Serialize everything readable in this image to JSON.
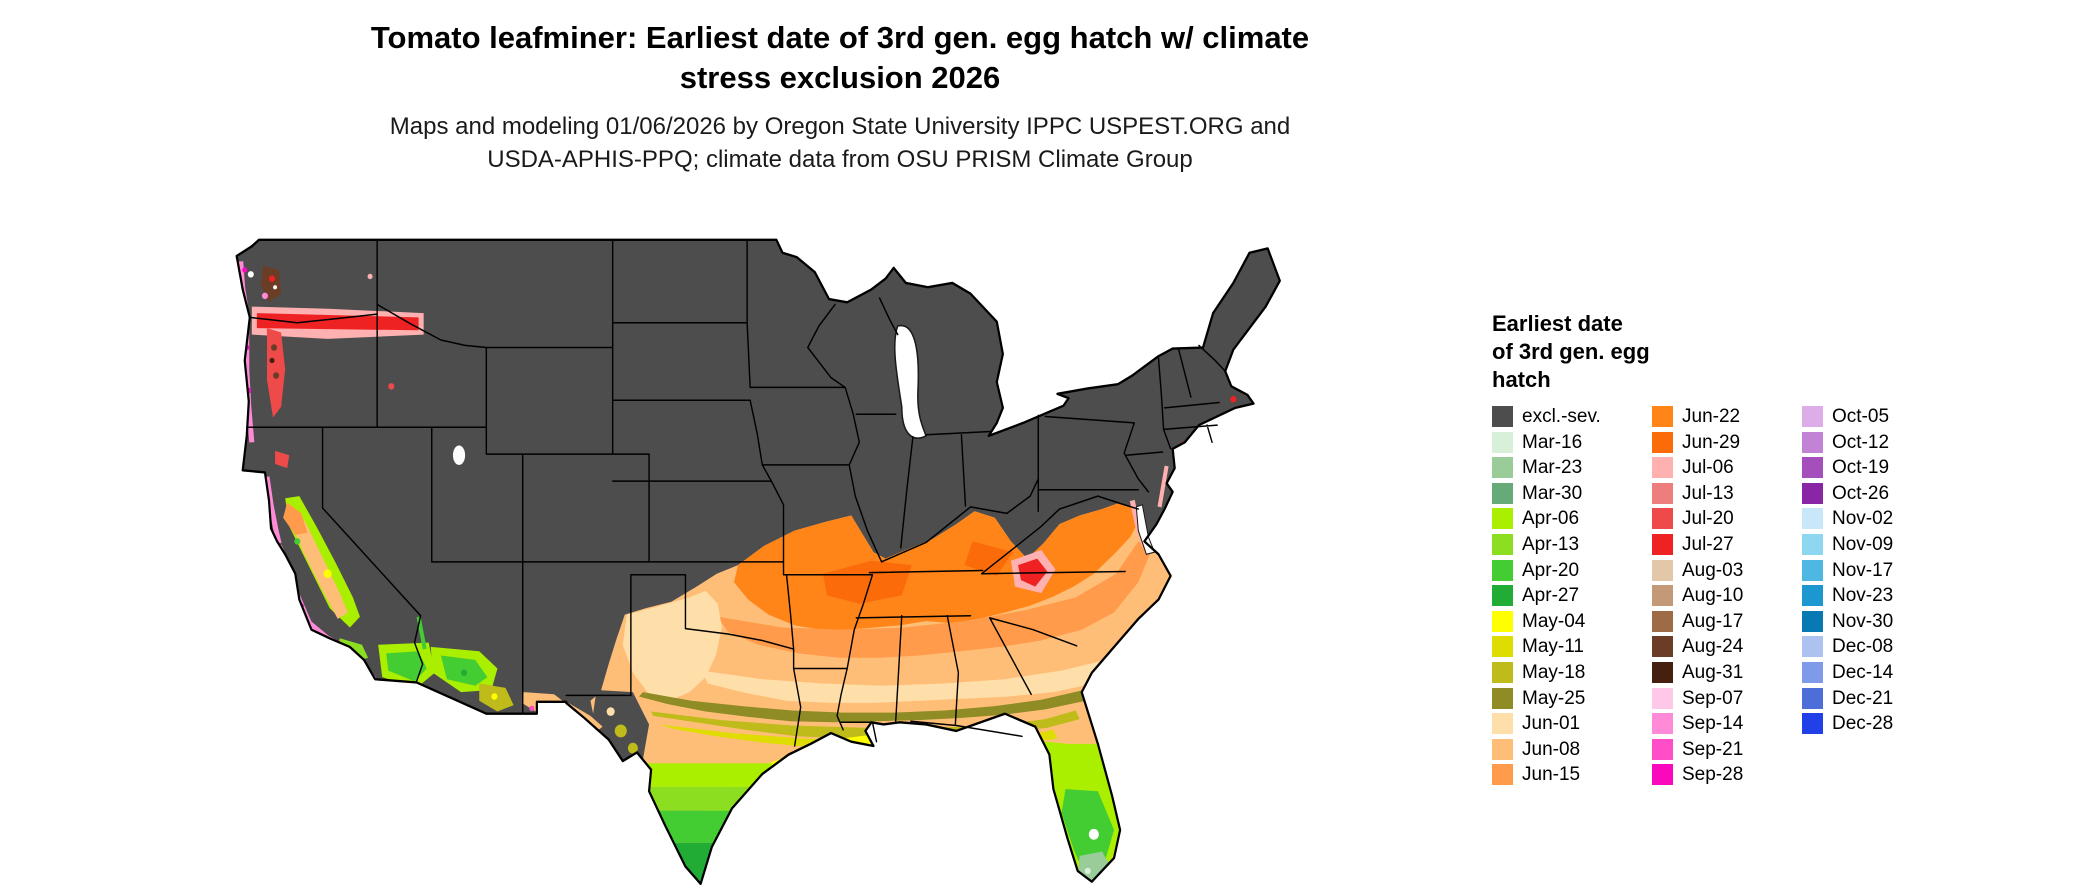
{
  "title_line1": "Tomato leafminer: Earliest date of 3rd gen. egg hatch w/ climate",
  "title_line2": "stress exclusion 2026",
  "subtitle_line1": "Maps and modeling 01/06/2026 by Oregon State University IPPC USPEST.ORG and",
  "subtitle_line2": "USDA-APHIS-PPQ; climate data from OSU PRISM Climate Group",
  "map": {
    "region": "contiguous United States",
    "base_color": "#4D4D4D",
    "border_color": "#000000",
    "background": "#FFFFFF",
    "excluded_meaning": "excl.-sev. = excluded due to severe climate stress"
  },
  "legend": {
    "title_lines": [
      "Earliest date",
      "of 3rd gen. egg",
      "hatch"
    ],
    "columns": [
      [
        {
          "label": "excl.-sev.",
          "color": "#4D4D4D"
        },
        {
          "label": "Mar-16",
          "color": "#D8F0D8"
        },
        {
          "label": "Mar-23",
          "color": "#99CC99"
        },
        {
          "label": "Mar-30",
          "color": "#66AA77"
        },
        {
          "label": "Apr-06",
          "color": "#AAEE00"
        },
        {
          "label": "Apr-13",
          "color": "#8CDE21"
        },
        {
          "label": "Apr-20",
          "color": "#44CC33"
        },
        {
          "label": "Apr-27",
          "color": "#21AD35"
        },
        {
          "label": "May-04",
          "color": "#FFFF00"
        },
        {
          "label": "May-11",
          "color": "#DEDC00"
        },
        {
          "label": "May-18",
          "color": "#BFBB1A"
        },
        {
          "label": "May-25",
          "color": "#8F8B25"
        },
        {
          "label": "Jun-01",
          "color": "#FFDFA9"
        },
        {
          "label": "Jun-08",
          "color": "#FFBE78"
        },
        {
          "label": "Jun-15",
          "color": "#FF9B4A"
        }
      ],
      [
        {
          "label": "Jun-22",
          "color": "#FF8519"
        },
        {
          "label": "Jun-29",
          "color": "#FB6B09"
        },
        {
          "label": "Jul-06",
          "color": "#FFB1B1"
        },
        {
          "label": "Jul-13",
          "color": "#EE7E7E"
        },
        {
          "label": "Jul-20",
          "color": "#EE4A4A"
        },
        {
          "label": "Jul-27",
          "color": "#EE2222"
        },
        {
          "label": "Aug-03",
          "color": "#E2C8A8"
        },
        {
          "label": "Aug-10",
          "color": "#C39977"
        },
        {
          "label": "Aug-17",
          "color": "#9E6B46"
        },
        {
          "label": "Aug-24",
          "color": "#6B3D26"
        },
        {
          "label": "Aug-31",
          "color": "#46200F"
        },
        {
          "label": "Sep-07",
          "color": "#FFC8E8"
        },
        {
          "label": "Sep-14",
          "color": "#FF8AD8"
        },
        {
          "label": "Sep-21",
          "color": "#FF4EC8"
        },
        {
          "label": "Sep-28",
          "color": "#F908BE"
        }
      ],
      [
        {
          "label": "Oct-05",
          "color": "#DCADE8"
        },
        {
          "label": "Oct-12",
          "color": "#C283D6"
        },
        {
          "label": "Oct-19",
          "color": "#A44FBC"
        },
        {
          "label": "Oct-26",
          "color": "#8826A6"
        },
        {
          "label": "Nov-02",
          "color": "#C8E8FA"
        },
        {
          "label": "Nov-09",
          "color": "#8ED7F0"
        },
        {
          "label": "Nov-17",
          "color": "#4EB8E2"
        },
        {
          "label": "Nov-23",
          "color": "#1D97D0"
        },
        {
          "label": "Nov-30",
          "color": "#0979B4"
        },
        {
          "label": "Dec-08",
          "color": "#AEC2F0"
        },
        {
          "label": "Dec-14",
          "color": "#7E9AE8"
        },
        {
          "label": "Dec-21",
          "color": "#4D6DD8"
        },
        {
          "label": "Dec-28",
          "color": "#2240E8"
        }
      ]
    ]
  }
}
